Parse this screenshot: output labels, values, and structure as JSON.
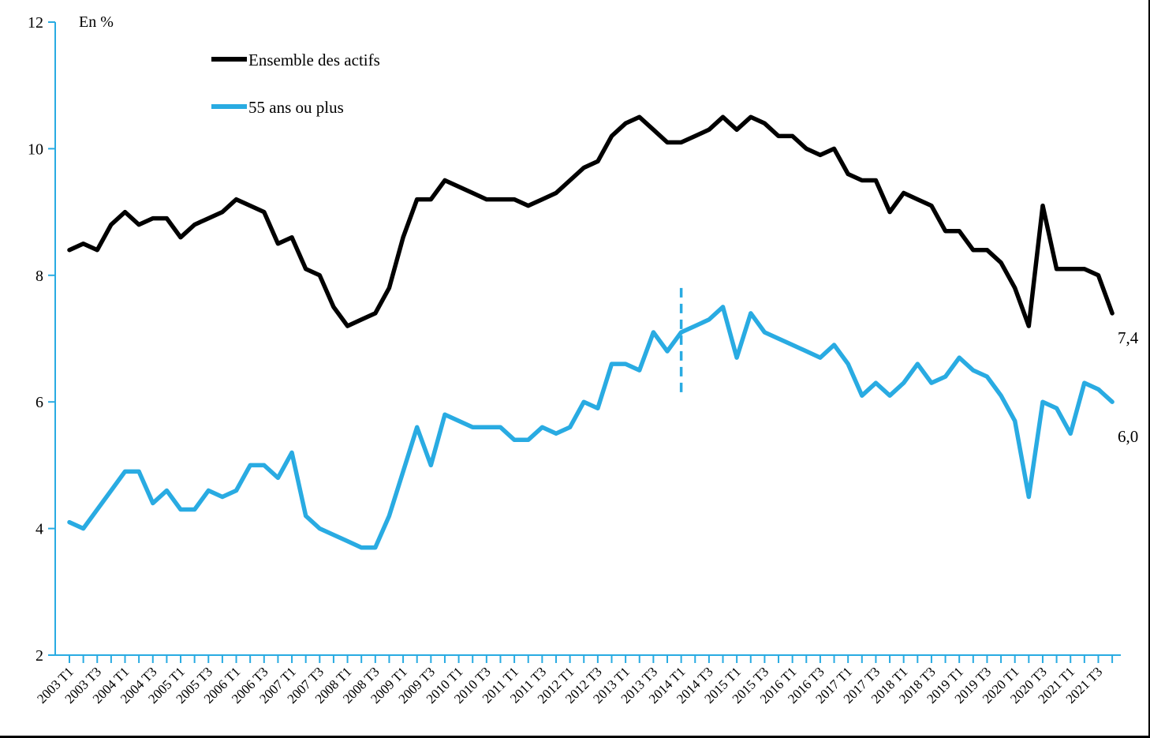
{
  "chart_data": {
    "type": "line",
    "unit_label": "En %",
    "decimal_style": "comma",
    "ylim": [
      2,
      12
    ],
    "yticks": [
      2,
      4,
      6,
      8,
      10,
      12
    ],
    "grid": false,
    "legend_position": "top-left-inside",
    "x_label_every": 2,
    "x": [
      "2003 T1",
      "2003 T2",
      "2003 T3",
      "2003 T4",
      "2004 T1",
      "2004 T2",
      "2004 T3",
      "2004 T4",
      "2005 T1",
      "2005 T2",
      "2005 T3",
      "2005 T4",
      "2006 T1",
      "2006 T2",
      "2006 T3",
      "2006 T4",
      "2007 T1",
      "2007 T2",
      "2007 T3",
      "2007 T4",
      "2008 T1",
      "2008 T2",
      "2008 T3",
      "2008 T4",
      "2009 T1",
      "2009 T2",
      "2009 T3",
      "2009 T4",
      "2010 T1",
      "2010 T2",
      "2010 T3",
      "2010 T4",
      "2011 T1",
      "2011 T2",
      "2011 T3",
      "2011 T4",
      "2012 T1",
      "2012 T2",
      "2012 T3",
      "2012 T4",
      "2013 T1",
      "2013 T2",
      "2013 T3",
      "2013 T4",
      "2014 T1",
      "2014 T2",
      "2014 T3",
      "2014 T4",
      "2015 T1",
      "2015 T2",
      "2015 T3",
      "2015 T4",
      "2016 T1",
      "2016 T2",
      "2016 T3",
      "2016 T4",
      "2017 T1",
      "2017 T2",
      "2017 T3",
      "2017 T4",
      "2018 T1",
      "2018 T2",
      "2018 T3",
      "2018 T4",
      "2019 T1",
      "2019 T2",
      "2019 T3",
      "2019 T4",
      "2020 T1",
      "2020 T2",
      "2020 T3",
      "2020 T4",
      "2021 T1",
      "2021 T2",
      "2021 T3",
      "2021 T4"
    ],
    "series": [
      {
        "name": "Ensemble des actifs",
        "color": "#000000",
        "end_label": "7,4",
        "values": [
          8.4,
          8.5,
          8.4,
          8.8,
          9.0,
          8.8,
          8.9,
          8.9,
          8.6,
          8.8,
          8.9,
          9.0,
          9.2,
          9.1,
          9.0,
          8.5,
          8.6,
          8.1,
          8.0,
          7.5,
          7.2,
          7.3,
          7.4,
          7.8,
          8.6,
          9.2,
          9.2,
          9.5,
          9.4,
          9.3,
          9.2,
          9.2,
          9.2,
          9.1,
          9.2,
          9.3,
          9.5,
          9.7,
          9.8,
          10.2,
          10.4,
          10.5,
          10.3,
          10.1,
          10.1,
          10.2,
          10.3,
          10.5,
          10.3,
          10.5,
          10.4,
          10.2,
          10.2,
          10.0,
          9.9,
          10.0,
          9.6,
          9.5,
          9.5,
          9.0,
          9.3,
          9.2,
          9.1,
          8.7,
          8.7,
          8.4,
          8.4,
          8.2,
          7.8,
          7.2,
          9.1,
          8.1,
          8.1,
          8.1,
          8.0,
          7.4
        ]
      },
      {
        "name": "55 ans ou plus",
        "color": "#29ABE2",
        "end_label": "6,0",
        "values": [
          4.1,
          4.0,
          4.3,
          4.6,
          4.9,
          4.9,
          4.4,
          4.6,
          4.3,
          4.3,
          4.6,
          4.5,
          4.6,
          5.0,
          5.0,
          4.8,
          5.2,
          4.2,
          4.0,
          3.9,
          3.8,
          3.7,
          3.7,
          4.2,
          4.9,
          5.6,
          5.0,
          5.8,
          5.7,
          5.6,
          5.6,
          5.6,
          5.4,
          5.4,
          5.6,
          5.5,
          5.6,
          6.0,
          5.9,
          6.6,
          6.6,
          6.5,
          7.1,
          6.8,
          7.1,
          7.2,
          7.3,
          7.5,
          6.7,
          7.4,
          7.1,
          7.0,
          6.9,
          6.8,
          6.7,
          6.9,
          6.6,
          6.1,
          6.3,
          6.1,
          6.3,
          6.6,
          6.3,
          6.4,
          6.7,
          6.5,
          6.4,
          6.1,
          5.7,
          4.5,
          6.0,
          5.9,
          5.5,
          6.3,
          6.2,
          6.0
        ]
      }
    ],
    "series_break_marker": {
      "x_label": "2014 T1",
      "style": "dashed",
      "color": "#29ABE2",
      "value_top": 7.8,
      "value_bottom": 6.1
    },
    "axis_color": "#29ABE2"
  }
}
